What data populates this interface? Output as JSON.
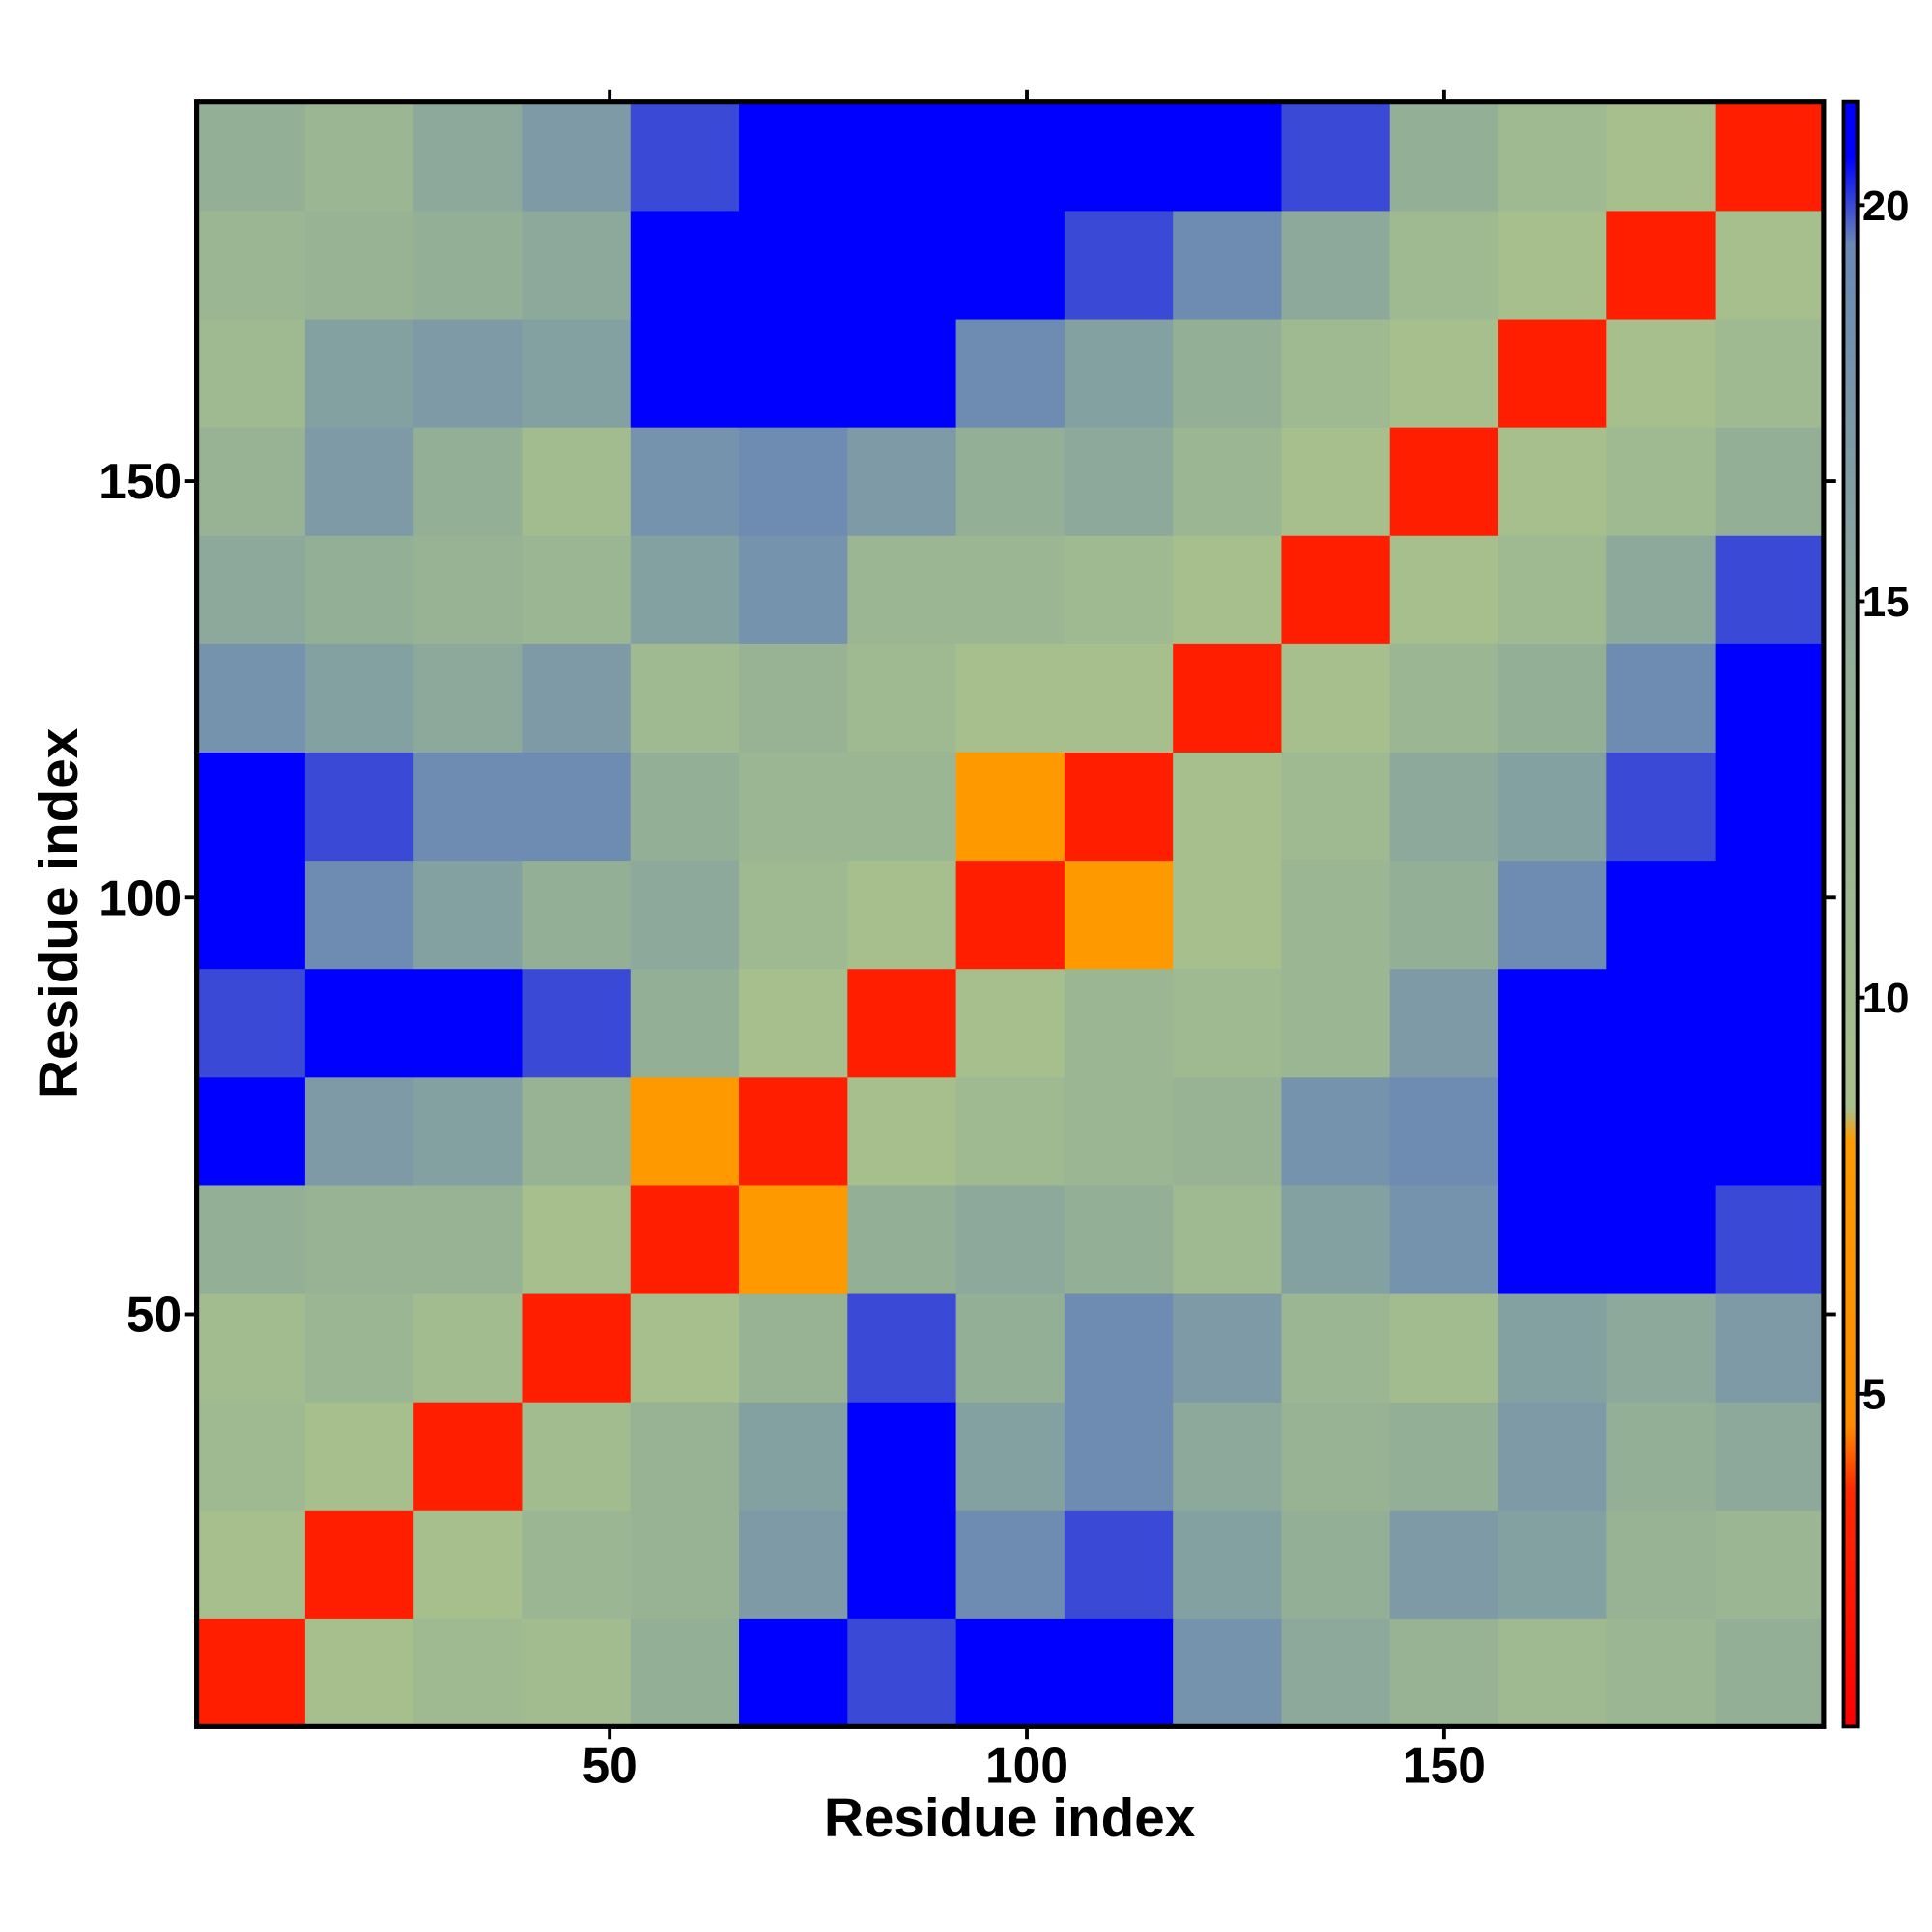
{
  "chart_data": {
    "type": "heatmap",
    "x_label": "Residue index",
    "y_label": "Residue index",
    "x_bins": [
      0.5,
      13.5,
      26.5,
      39.5,
      52.5,
      65.5,
      78.5,
      91.5,
      104.5,
      117.5,
      130.5,
      143.5,
      156.5,
      169.5,
      182.5,
      195.5
    ],
    "y_bins": [
      0.5,
      13.5,
      26.5,
      39.5,
      52.5,
      65.5,
      78.5,
      91.5,
      104.5,
      117.5,
      130.5,
      143.5,
      156.5,
      169.5,
      182.5,
      195.5
    ],
    "z": [
      [
        3,
        9,
        11,
        10,
        14,
        21,
        20,
        21,
        21,
        18,
        15,
        13,
        11,
        12,
        14
      ],
      [
        9,
        3,
        9,
        12,
        13,
        17,
        21,
        19,
        20,
        16,
        14,
        17,
        16,
        13,
        12
      ],
      [
        11,
        9,
        3,
        10,
        13,
        16,
        21,
        16,
        19,
        15,
        13,
        14,
        17,
        14,
        15
      ],
      [
        10,
        12,
        10,
        3,
        9,
        13,
        20,
        14,
        19,
        17,
        12,
        10,
        16,
        15,
        17
      ],
      [
        14,
        13,
        13,
        9,
        3,
        8,
        14,
        15,
        14,
        11,
        16,
        18,
        21,
        21,
        20
      ],
      [
        21,
        17,
        16,
        13,
        8,
        3,
        9,
        11,
        12,
        13,
        18,
        19,
        21,
        21,
        21
      ],
      [
        20,
        21,
        21,
        20,
        14,
        9,
        3,
        9,
        12,
        11,
        12,
        17,
        21,
        21,
        21
      ],
      [
        21,
        19,
        16,
        14,
        15,
        11,
        9,
        3,
        8,
        9,
        12,
        14,
        19,
        21,
        21
      ],
      [
        21,
        20,
        19,
        19,
        14,
        12,
        12,
        8,
        3,
        9,
        11,
        15,
        16,
        20,
        21
      ],
      [
        18,
        16,
        15,
        17,
        11,
        13,
        11,
        9,
        9,
        3,
        9,
        12,
        14,
        19,
        21
      ],
      [
        15,
        14,
        13,
        12,
        16,
        18,
        12,
        12,
        11,
        9,
        3,
        9,
        11,
        15,
        20
      ],
      [
        13,
        17,
        14,
        10,
        18,
        19,
        17,
        14,
        15,
        12,
        9,
        3,
        9,
        11,
        14
      ],
      [
        11,
        16,
        17,
        16,
        21,
        21,
        21,
        19,
        16,
        14,
        11,
        9,
        3,
        9,
        11
      ],
      [
        12,
        13,
        14,
        15,
        21,
        21,
        21,
        21,
        20,
        19,
        15,
        11,
        9,
        3,
        9
      ],
      [
        14,
        12,
        15,
        17,
        20,
        21,
        21,
        21,
        21,
        21,
        20,
        14,
        11,
        9,
        3
      ]
    ],
    "xlim": [
      0.5,
      195.5
    ],
    "ylim": [
      0.5,
      195.5
    ],
    "xticks": [
      50,
      100,
      150
    ],
    "yticks": [
      50,
      100,
      150
    ],
    "colorbar": {
      "range": [
        0.8,
        21.3
      ],
      "ticks": [
        5,
        10,
        15,
        20
      ],
      "stops": [
        {
          "value": 0.8,
          "color": "#ff0000"
        },
        {
          "value": 3.8,
          "color": "#ff2a00"
        },
        {
          "value": 4.6,
          "color": "#ff8c00"
        },
        {
          "value": 8.2,
          "color": "#ff9a00"
        },
        {
          "value": 8.6,
          "color": "#a8c08c"
        },
        {
          "value": 14,
          "color": "#93b096"
        },
        {
          "value": 19.5,
          "color": "#6a88b4"
        },
        {
          "value": 20.6,
          "color": "#0000ff"
        },
        {
          "value": 21.3,
          "color": "#0000ff"
        }
      ]
    }
  }
}
